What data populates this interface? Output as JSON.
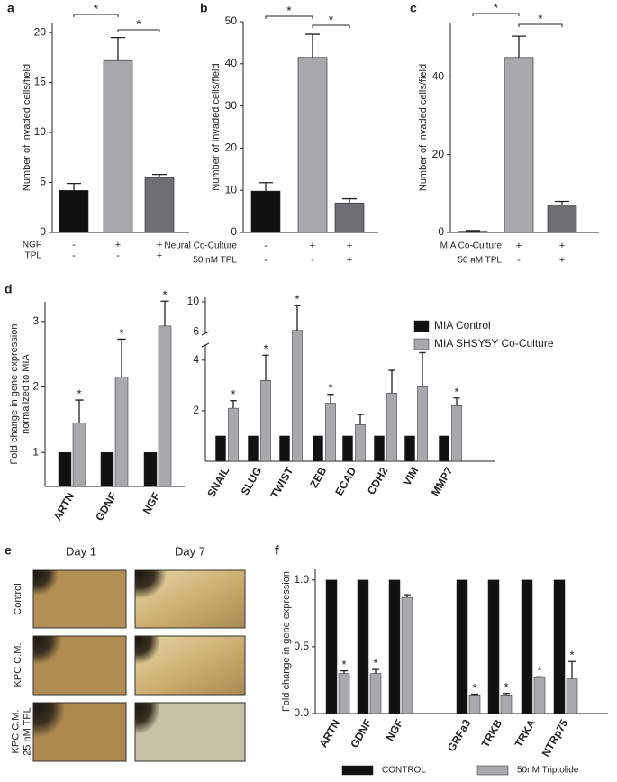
{
  "chart_data": [
    {
      "type": "bar",
      "label": "a",
      "ylabel": [
        "Number of invaded cells/field"
      ],
      "ylim": [
        0,
        21
      ],
      "yticks": [
        0,
        5,
        10,
        15,
        20
      ],
      "values": [
        4.2,
        17.2,
        5.5
      ],
      "errors": [
        0.7,
        2.3,
        0.3
      ],
      "colors": [
        "#111111",
        "#a9a9ad",
        "#6f6f73"
      ],
      "conditions": [
        {
          "name": "NGF",
          "values": [
            "-",
            "+",
            "+"
          ]
        },
        {
          "name": "TPL",
          "values": [
            "-",
            "-",
            "+"
          ]
        }
      ],
      "brackets": [
        {
          "from": 0,
          "to": 1,
          "label": "*"
        },
        {
          "from": 1,
          "to": 2,
          "label": "*"
        }
      ]
    },
    {
      "type": "bar",
      "label": "b",
      "ylabel": [
        "Number of invaded cells/field"
      ],
      "ylim": [
        0,
        50
      ],
      "yticks": [
        0,
        10,
        20,
        30,
        40,
        50
      ],
      "values": [
        9.8,
        41.5,
        7
      ],
      "errors": [
        2,
        5.5,
        1
      ],
      "colors": [
        "#111111",
        "#a9a9ad",
        "#6f6f73"
      ],
      "conditions": [
        {
          "name": "Neural Co-Culture",
          "values": [
            "-",
            "+",
            "+"
          ]
        },
        {
          "name": "50 nM TPL",
          "values": [
            "-",
            "-",
            "+"
          ]
        }
      ],
      "brackets": [
        {
          "from": 0,
          "to": 1,
          "label": "*"
        },
        {
          "from": 1,
          "to": 2,
          "label": "*"
        }
      ]
    },
    {
      "type": "bar",
      "label": "c",
      "ylabel": [
        "Number of invaded cells/field"
      ],
      "ylim": [
        0,
        54
      ],
      "yticks": [
        0,
        20,
        40
      ],
      "values": [
        0.3,
        45,
        7
      ],
      "errors": [
        0.2,
        5.5,
        1
      ],
      "colors": [
        "#111111",
        "#a9a9ad",
        "#6f6f73"
      ],
      "conditions": [
        {
          "name": "MIA Co-Culture",
          "values": [
            "-",
            "+",
            "+"
          ]
        },
        {
          "name": "50 nM TPL",
          "values": [
            "-",
            "-",
            "+"
          ]
        }
      ],
      "brackets": [
        {
          "from": 0,
          "to": 1,
          "label": "*"
        },
        {
          "from": 1,
          "to": 2,
          "label": "*"
        }
      ]
    },
    {
      "type": "grouped_bar",
      "label": "d",
      "ylabel": [
        "Fold change in gene expression",
        "normalized to MIA"
      ],
      "ylim": [
        0.48,
        3.3
      ],
      "yticks": [
        1,
        2,
        3
      ],
      "categories": [
        "ARTN",
        "GDNF",
        "NGF"
      ],
      "series": [
        {
          "color": "#111111",
          "values": [
            1,
            1,
            1
          ]
        },
        {
          "color": "#a9a9ad",
          "values": [
            1.45,
            2.15,
            2.93
          ],
          "errors": [
            0.35,
            0.58,
            0.38
          ],
          "annotations": [
            "*",
            "*",
            "*"
          ]
        }
      ]
    },
    {
      "type": "grouped_bar",
      "ylim": [
        0,
        10.6
      ],
      "ybreak": [
        4.6,
        5.8
      ],
      "yticks": [
        2,
        4,
        6,
        10
      ],
      "legend": "upper right",
      "categories": [
        "SNAIL",
        "SLUG",
        "TWIST",
        "ZEB",
        "ECAD",
        "CDH2",
        "VIM",
        "MMP7"
      ],
      "series": [
        {
          "name": "MIA Control",
          "color": "#111111",
          "values": [
            1,
            1,
            1,
            1,
            1,
            1,
            1,
            1
          ]
        },
        {
          "name": "MIA SHSY5Y Co-Culture",
          "color": "#a9a9ad",
          "values": [
            2.1,
            3.2,
            6.2,
            2.3,
            1.45,
            2.7,
            2.95,
            2.2
          ],
          "errors": [
            0.3,
            1.0,
            3.3,
            0.35,
            0.4,
            0.9,
            1.35,
            0.3
          ],
          "annotations": [
            "*",
            "*",
            "*",
            "*",
            null,
            null,
            "*",
            "*"
          ]
        }
      ]
    },
    {
      "type": "grouped_bar",
      "label": "f",
      "ylabel": [
        "Fold change in gene expression"
      ],
      "ylim": [
        0,
        1.08
      ],
      "yticks": [
        {
          "value": 0,
          "label": "0.0"
        },
        0.5,
        {
          "value": 1,
          "label": "1.0"
        }
      ],
      "legend": "bottom",
      "categories": [
        "ARTN",
        "GDNF",
        "NGF",
        null,
        "GRFa3",
        "TRKB",
        "TRKA",
        "NTRp75"
      ],
      "series": [
        {
          "name": "CONTROL",
          "color": "#111111",
          "values": [
            1,
            1,
            1,
            null,
            1,
            1,
            1,
            1
          ]
        },
        {
          "name": "50nM Triptolide",
          "color": "#a9a9ad",
          "values": [
            0.3,
            0.3,
            0.87,
            null,
            0.14,
            0.14,
            0.27,
            0.26
          ],
          "errors": [
            0.02,
            0.03,
            0.02,
            null,
            0.005,
            0.01,
            0.005,
            0.13
          ],
          "annotations": [
            "*",
            "*",
            null,
            null,
            "*",
            "*",
            "*",
            "*"
          ]
        }
      ]
    }
  ],
  "image_panel": {
    "label": "e",
    "columns": [
      "Day 1",
      "Day 7"
    ],
    "rows": [
      [
        "Control"
      ],
      [
        "KPC C.M."
      ],
      [
        "KPC C.M.",
        "25 nM TPL"
      ]
    ]
  }
}
